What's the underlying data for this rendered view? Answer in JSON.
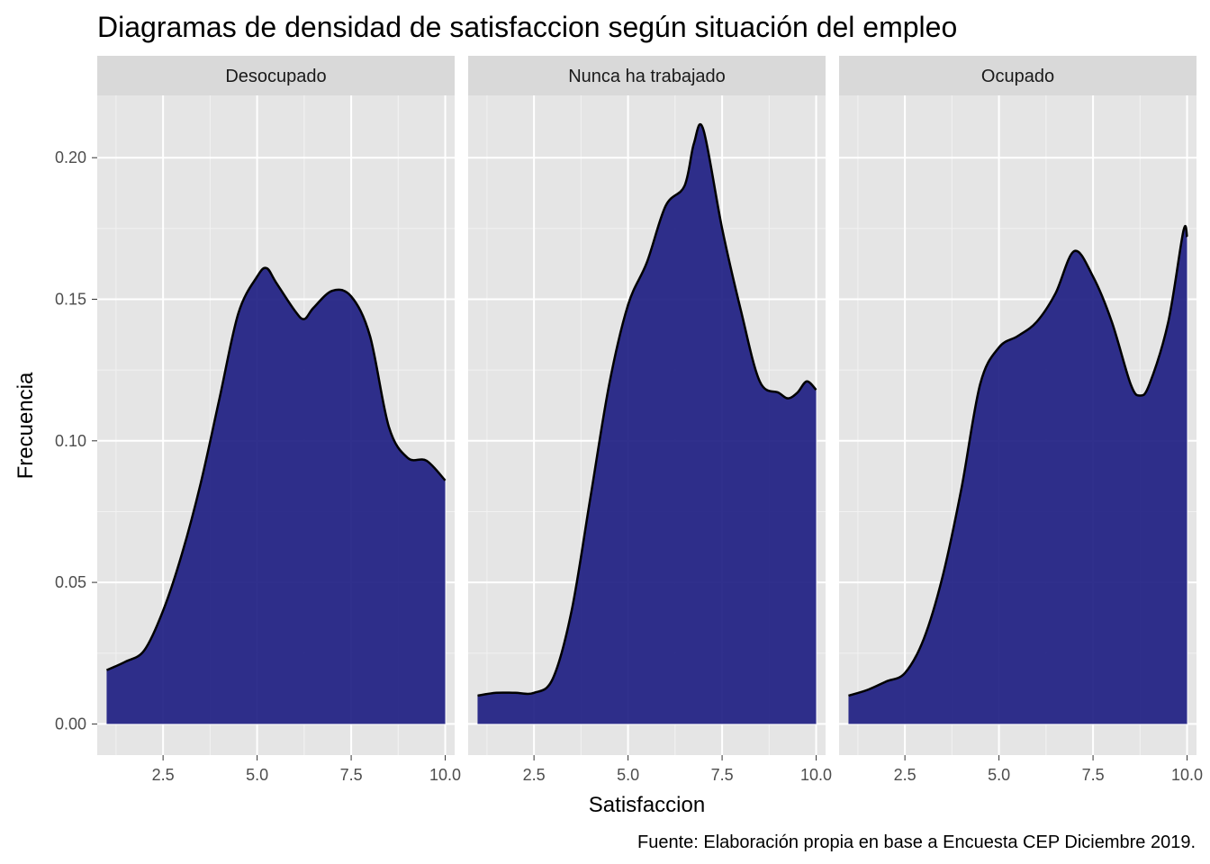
{
  "chart_data": {
    "type": "area",
    "title": "Diagramas de densidad de satisfaccion según situación del empleo",
    "xlabel": "Satisfaccion",
    "ylabel": "Frecuencia",
    "caption": "Fuente: Elaboración propia en base a Encuesta CEP Diciembre 2019.",
    "xlim": [
      0.75,
      10.25
    ],
    "ylim": [
      -0.011,
      0.222
    ],
    "x_ticks": [
      2.5,
      5.0,
      7.5,
      10.0
    ],
    "x_tick_labels": [
      "2.5",
      "5.0",
      "7.5",
      "10.0"
    ],
    "y_ticks": [
      0.0,
      0.05,
      0.1,
      0.15,
      0.2
    ],
    "y_tick_labels": [
      "0.00",
      "0.05",
      "0.10",
      "0.15",
      "0.20"
    ],
    "grid": true,
    "fill_color": "#1a1a80",
    "fill_opacity": 0.9,
    "line_color": "#000000",
    "panel_background": "#e5e5e5",
    "strip_background": "#d9d9d9",
    "panels": [
      {
        "name": "Desocupado",
        "x": [
          1.0,
          1.5,
          2.0,
          2.5,
          3.0,
          3.5,
          4.0,
          4.5,
          5.0,
          5.25,
          5.5,
          6.0,
          6.25,
          6.5,
          7.0,
          7.5,
          8.0,
          8.5,
          9.0,
          9.5,
          10.0
        ],
        "y": [
          0.019,
          0.022,
          0.026,
          0.04,
          0.06,
          0.085,
          0.115,
          0.145,
          0.158,
          0.161,
          0.156,
          0.146,
          0.143,
          0.147,
          0.153,
          0.151,
          0.137,
          0.105,
          0.094,
          0.093,
          0.086
        ]
      },
      {
        "name": "Nunca ha trabajado",
        "x": [
          1.0,
          1.5,
          2.0,
          2.5,
          3.0,
          3.5,
          4.0,
          4.5,
          5.0,
          5.5,
          6.0,
          6.5,
          6.75,
          7.0,
          7.5,
          8.0,
          8.5,
          9.0,
          9.25,
          9.5,
          9.75,
          10.0
        ],
        "y": [
          0.01,
          0.011,
          0.011,
          0.011,
          0.016,
          0.04,
          0.08,
          0.12,
          0.148,
          0.163,
          0.183,
          0.19,
          0.205,
          0.21,
          0.175,
          0.146,
          0.121,
          0.117,
          0.115,
          0.117,
          0.121,
          0.118
        ]
      },
      {
        "name": "Ocupado",
        "x": [
          1.0,
          1.5,
          2.0,
          2.5,
          3.0,
          3.5,
          4.0,
          4.5,
          5.0,
          5.5,
          6.0,
          6.5,
          7.0,
          7.5,
          8.0,
          8.5,
          8.75,
          9.0,
          9.5,
          9.9,
          10.0
        ],
        "y": [
          0.01,
          0.012,
          0.015,
          0.018,
          0.03,
          0.052,
          0.083,
          0.12,
          0.133,
          0.137,
          0.142,
          0.152,
          0.167,
          0.158,
          0.142,
          0.12,
          0.116,
          0.12,
          0.142,
          0.174,
          0.172
        ]
      }
    ]
  }
}
